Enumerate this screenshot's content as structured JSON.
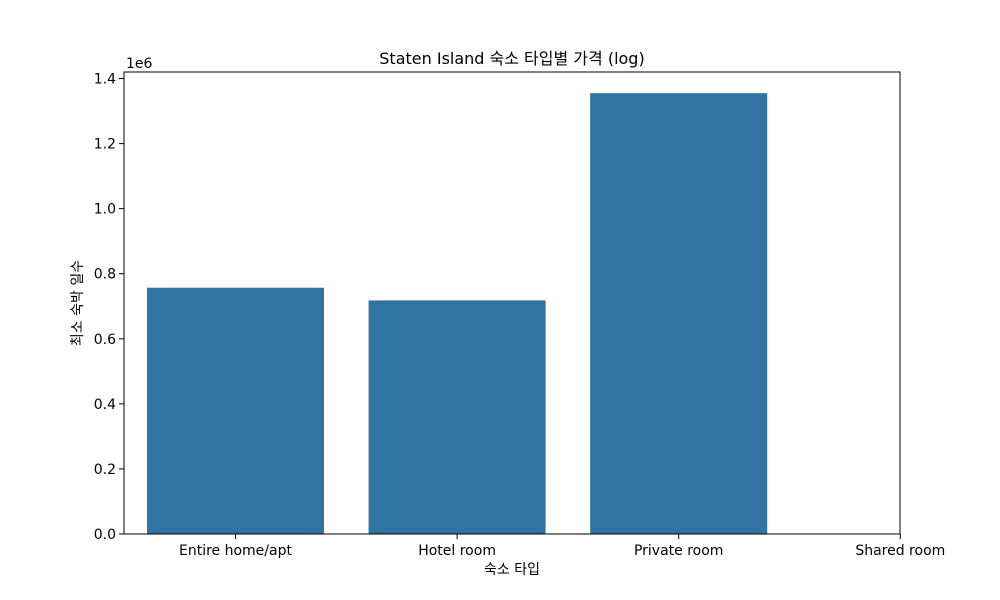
{
  "chart_data": {
    "type": "bar",
    "title": "Staten Island 숙소 타입별 가격 (log)",
    "xlabel": "숙소 타입",
    "ylabel": "최소 숙박 일수",
    "y_offset_label": "1e6",
    "categories": [
      "Entire home/apt",
      "Hotel room",
      "Private room",
      "Shared room"
    ],
    "values": [
      757000,
      718000,
      1355000,
      null
    ],
    "ylim": [
      0,
      1420000
    ],
    "yticks": [
      0,
      200000,
      400000,
      600000,
      800000,
      1000000,
      1200000,
      1400000
    ],
    "ytick_labels": [
      "0.0",
      "0.2",
      "0.4",
      "0.6",
      "0.8",
      "1.0",
      "1.2",
      "1.4"
    ],
    "grid": false,
    "bar_color": "#3274a1"
  }
}
